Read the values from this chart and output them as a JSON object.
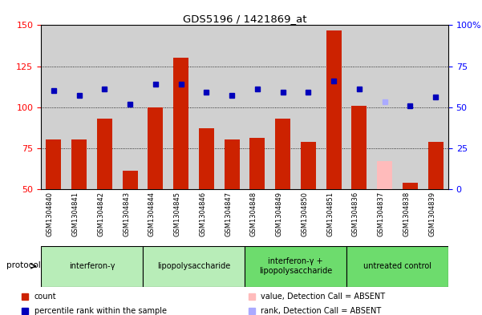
{
  "title": "GDS5196 / 1421869_at",
  "samples": [
    "GSM1304840",
    "GSM1304841",
    "GSM1304842",
    "GSM1304843",
    "GSM1304844",
    "GSM1304845",
    "GSM1304846",
    "GSM1304847",
    "GSM1304848",
    "GSM1304849",
    "GSM1304850",
    "GSM1304851",
    "GSM1304836",
    "GSM1304837",
    "GSM1304838",
    "GSM1304839"
  ],
  "counts": [
    80,
    80,
    93,
    61,
    100,
    130,
    87,
    80,
    81,
    93,
    79,
    147,
    101,
    67,
    54,
    79
  ],
  "absent_count": [
    false,
    false,
    false,
    false,
    false,
    false,
    false,
    false,
    false,
    false,
    false,
    false,
    false,
    true,
    false,
    false
  ],
  "percentile_ranks": [
    110,
    107,
    111,
    102,
    114,
    114,
    109,
    107,
    111,
    109,
    109,
    116,
    111,
    103,
    101,
    106
  ],
  "absent_rank": [
    false,
    false,
    false,
    false,
    false,
    false,
    false,
    false,
    false,
    false,
    false,
    false,
    false,
    true,
    false,
    false
  ],
  "groups": [
    {
      "label": "interferon-γ",
      "start": 0,
      "end": 4,
      "color": "#b8edb8"
    },
    {
      "label": "lipopolysaccharide",
      "start": 4,
      "end": 8,
      "color": "#b8edb8"
    },
    {
      "label": "interferon-γ +\nlipopolysaccharide",
      "start": 8,
      "end": 12,
      "color": "#6ddc6d"
    },
    {
      "label": "untreated control",
      "start": 12,
      "end": 16,
      "color": "#6ddc6d"
    }
  ],
  "ylim_left": [
    50,
    150
  ],
  "ylim_right": [
    0,
    100
  ],
  "yticks_left": [
    50,
    75,
    100,
    125,
    150
  ],
  "yticks_right": [
    0,
    25,
    50,
    75,
    100
  ],
  "ytick_labels_right": [
    "0",
    "25",
    "50",
    "75",
    "100%"
  ],
  "bar_color": "#cc2200",
  "absent_bar_color": "#ffbbbb",
  "dot_color": "#0000bb",
  "absent_dot_color": "#aaaaff",
  "bg_color": "#d0d0d0",
  "legend_items": [
    {
      "label": "count",
      "color": "#cc2200",
      "marker": "s"
    },
    {
      "label": "percentile rank within the sample",
      "color": "#0000bb",
      "marker": "s"
    },
    {
      "label": "value, Detection Call = ABSENT",
      "color": "#ffbbbb",
      "marker": "s"
    },
    {
      "label": "rank, Detection Call = ABSENT",
      "color": "#aaaaff",
      "marker": "s"
    }
  ]
}
